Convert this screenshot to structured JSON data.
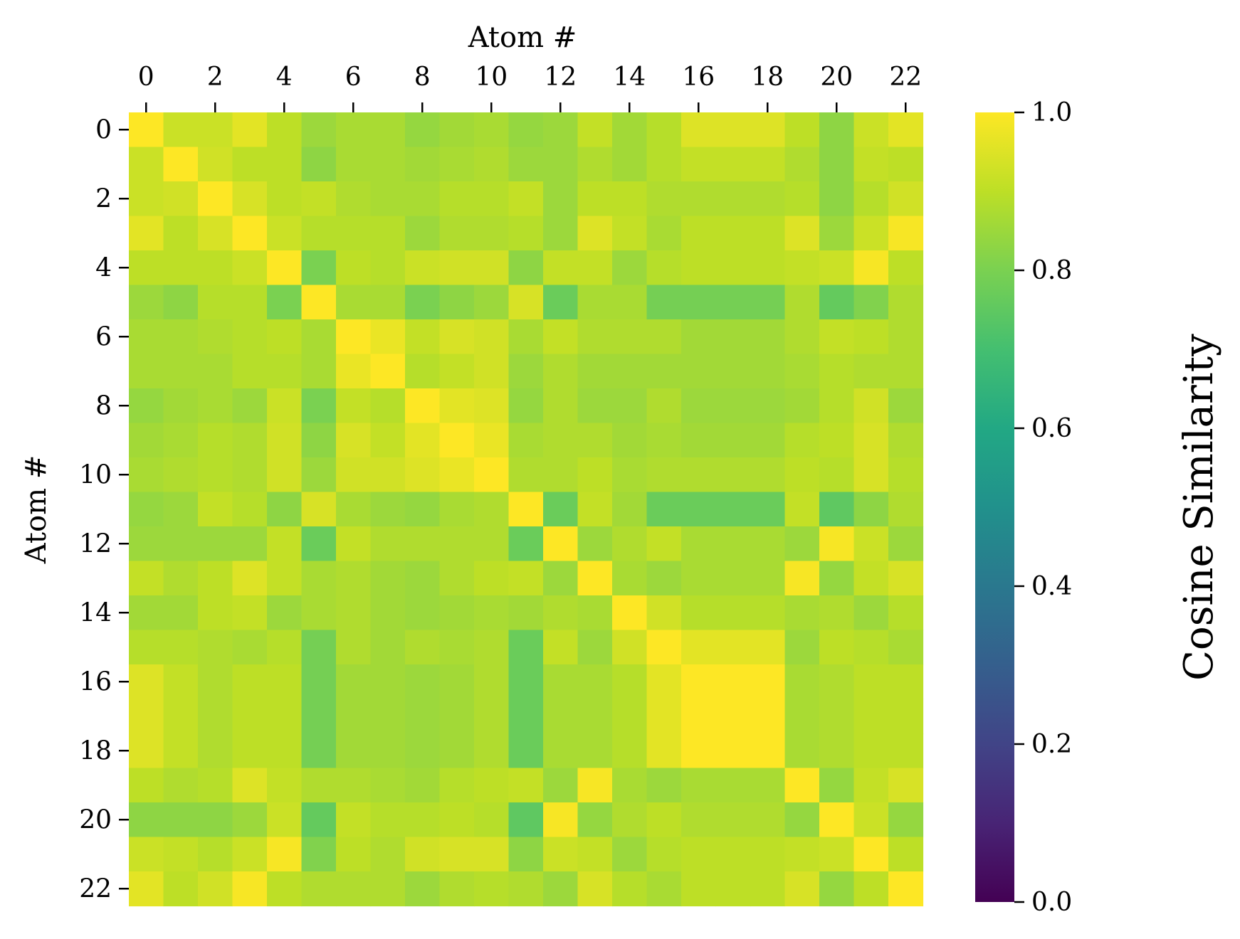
{
  "chart_data": {
    "type": "heatmap",
    "xlabel": "Atom #",
    "ylabel": "Atom #",
    "x_ticks": [
      "0",
      "2",
      "4",
      "6",
      "8",
      "10",
      "12",
      "14",
      "16",
      "18",
      "20",
      "22"
    ],
    "y_ticks": [
      "0",
      "2",
      "4",
      "6",
      "8",
      "10",
      "12",
      "14",
      "16",
      "18",
      "20",
      "22"
    ],
    "colorbar": {
      "label": "Cosine Similarity",
      "ticks": [
        "0.0",
        "0.2",
        "0.4",
        "0.6",
        "0.8",
        "1.0"
      ],
      "tick_values": [
        0.0,
        0.2,
        0.4,
        0.6,
        0.8,
        1.0
      ],
      "range": [
        0.0,
        1.0
      ],
      "colormap": "viridis"
    },
    "x_axis_position": "top",
    "grid": false,
    "rows": 23,
    "cols": 23,
    "values": [
      [
        1.0,
        0.92,
        0.92,
        0.96,
        0.9,
        0.85,
        0.87,
        0.87,
        0.84,
        0.86,
        0.87,
        0.84,
        0.85,
        0.91,
        0.86,
        0.89,
        0.95,
        0.95,
        0.95,
        0.9,
        0.83,
        0.92,
        0.96
      ],
      [
        0.92,
        1.0,
        0.93,
        0.9,
        0.9,
        0.83,
        0.87,
        0.87,
        0.86,
        0.87,
        0.88,
        0.85,
        0.85,
        0.88,
        0.86,
        0.89,
        0.91,
        0.91,
        0.91,
        0.88,
        0.83,
        0.91,
        0.9
      ],
      [
        0.92,
        0.93,
        1.0,
        0.94,
        0.9,
        0.91,
        0.88,
        0.87,
        0.87,
        0.89,
        0.89,
        0.91,
        0.85,
        0.9,
        0.9,
        0.88,
        0.88,
        0.88,
        0.88,
        0.89,
        0.83,
        0.89,
        0.93
      ],
      [
        0.96,
        0.9,
        0.94,
        1.0,
        0.92,
        0.89,
        0.89,
        0.89,
        0.85,
        0.88,
        0.88,
        0.89,
        0.85,
        0.95,
        0.91,
        0.87,
        0.9,
        0.9,
        0.9,
        0.95,
        0.85,
        0.92,
        0.99
      ],
      [
        0.9,
        0.9,
        0.9,
        0.92,
        1.0,
        0.8,
        0.9,
        0.89,
        0.92,
        0.93,
        0.93,
        0.83,
        0.91,
        0.91,
        0.85,
        0.89,
        0.9,
        0.9,
        0.9,
        0.91,
        0.92,
        0.99,
        0.9
      ],
      [
        0.85,
        0.83,
        0.89,
        0.89,
        0.8,
        1.0,
        0.87,
        0.87,
        0.8,
        0.83,
        0.85,
        0.94,
        0.77,
        0.87,
        0.87,
        0.79,
        0.79,
        0.79,
        0.79,
        0.88,
        0.76,
        0.81,
        0.88
      ],
      [
        0.87,
        0.87,
        0.88,
        0.89,
        0.9,
        0.87,
        1.0,
        0.97,
        0.91,
        0.94,
        0.93,
        0.87,
        0.91,
        0.88,
        0.88,
        0.88,
        0.86,
        0.86,
        0.86,
        0.88,
        0.91,
        0.9,
        0.88
      ],
      [
        0.87,
        0.87,
        0.87,
        0.89,
        0.89,
        0.87,
        0.97,
        1.0,
        0.89,
        0.91,
        0.93,
        0.85,
        0.88,
        0.86,
        0.86,
        0.86,
        0.86,
        0.86,
        0.86,
        0.87,
        0.89,
        0.88,
        0.88
      ],
      [
        0.84,
        0.86,
        0.87,
        0.85,
        0.92,
        0.8,
        0.91,
        0.89,
        1.0,
        0.96,
        0.95,
        0.84,
        0.88,
        0.85,
        0.85,
        0.88,
        0.85,
        0.85,
        0.85,
        0.86,
        0.89,
        0.93,
        0.85
      ],
      [
        0.86,
        0.87,
        0.89,
        0.88,
        0.93,
        0.83,
        0.94,
        0.91,
        0.96,
        1.0,
        0.97,
        0.87,
        0.88,
        0.88,
        0.86,
        0.87,
        0.86,
        0.86,
        0.86,
        0.89,
        0.9,
        0.94,
        0.88
      ],
      [
        0.87,
        0.88,
        0.89,
        0.88,
        0.93,
        0.85,
        0.93,
        0.93,
        0.95,
        0.97,
        1.0,
        0.88,
        0.88,
        0.9,
        0.87,
        0.88,
        0.88,
        0.88,
        0.88,
        0.9,
        0.89,
        0.94,
        0.89
      ],
      [
        0.84,
        0.85,
        0.91,
        0.89,
        0.83,
        0.94,
        0.87,
        0.85,
        0.84,
        0.87,
        0.88,
        1.0,
        0.77,
        0.91,
        0.86,
        0.77,
        0.77,
        0.77,
        0.77,
        0.91,
        0.75,
        0.83,
        0.88
      ],
      [
        0.85,
        0.85,
        0.85,
        0.85,
        0.91,
        0.77,
        0.91,
        0.88,
        0.88,
        0.88,
        0.88,
        0.77,
        1.0,
        0.85,
        0.88,
        0.91,
        0.87,
        0.87,
        0.87,
        0.85,
        0.99,
        0.92,
        0.85
      ],
      [
        0.91,
        0.88,
        0.9,
        0.95,
        0.91,
        0.87,
        0.88,
        0.86,
        0.85,
        0.88,
        0.9,
        0.91,
        0.85,
        1.0,
        0.87,
        0.85,
        0.87,
        0.87,
        0.87,
        0.99,
        0.84,
        0.91,
        0.94
      ],
      [
        0.86,
        0.86,
        0.9,
        0.91,
        0.85,
        0.87,
        0.88,
        0.86,
        0.85,
        0.86,
        0.87,
        0.86,
        0.88,
        0.87,
        1.0,
        0.93,
        0.89,
        0.89,
        0.89,
        0.87,
        0.88,
        0.85,
        0.89
      ],
      [
        0.89,
        0.89,
        0.88,
        0.87,
        0.89,
        0.79,
        0.88,
        0.86,
        0.88,
        0.87,
        0.88,
        0.77,
        0.91,
        0.85,
        0.93,
        1.0,
        0.96,
        0.96,
        0.96,
        0.85,
        0.9,
        0.89,
        0.87
      ],
      [
        0.95,
        0.91,
        0.88,
        0.9,
        0.9,
        0.79,
        0.86,
        0.86,
        0.85,
        0.86,
        0.88,
        0.77,
        0.87,
        0.87,
        0.89,
        0.96,
        1.0,
        1.0,
        1.0,
        0.87,
        0.88,
        0.9,
        0.9
      ],
      [
        0.95,
        0.91,
        0.88,
        0.9,
        0.9,
        0.79,
        0.86,
        0.86,
        0.85,
        0.86,
        0.88,
        0.77,
        0.87,
        0.87,
        0.89,
        0.96,
        1.0,
        1.0,
        1.0,
        0.87,
        0.88,
        0.9,
        0.9
      ],
      [
        0.95,
        0.91,
        0.88,
        0.9,
        0.9,
        0.79,
        0.86,
        0.86,
        0.85,
        0.86,
        0.88,
        0.77,
        0.87,
        0.87,
        0.89,
        0.96,
        1.0,
        1.0,
        1.0,
        0.87,
        0.88,
        0.9,
        0.9
      ],
      [
        0.9,
        0.88,
        0.89,
        0.95,
        0.91,
        0.88,
        0.88,
        0.87,
        0.86,
        0.89,
        0.9,
        0.91,
        0.85,
        0.99,
        0.87,
        0.85,
        0.87,
        0.87,
        0.87,
        1.0,
        0.84,
        0.91,
        0.94
      ],
      [
        0.83,
        0.83,
        0.83,
        0.85,
        0.92,
        0.76,
        0.91,
        0.89,
        0.89,
        0.9,
        0.89,
        0.75,
        0.99,
        0.84,
        0.88,
        0.9,
        0.88,
        0.88,
        0.88,
        0.84,
        1.0,
        0.92,
        0.84
      ],
      [
        0.92,
        0.91,
        0.89,
        0.92,
        0.99,
        0.81,
        0.9,
        0.88,
        0.93,
        0.94,
        0.94,
        0.83,
        0.92,
        0.91,
        0.85,
        0.89,
        0.9,
        0.9,
        0.9,
        0.91,
        0.92,
        1.0,
        0.9
      ],
      [
        0.96,
        0.9,
        0.93,
        0.99,
        0.9,
        0.88,
        0.88,
        0.88,
        0.85,
        0.88,
        0.89,
        0.88,
        0.85,
        0.94,
        0.89,
        0.87,
        0.9,
        0.9,
        0.9,
        0.94,
        0.84,
        0.9,
        1.0
      ]
    ]
  }
}
